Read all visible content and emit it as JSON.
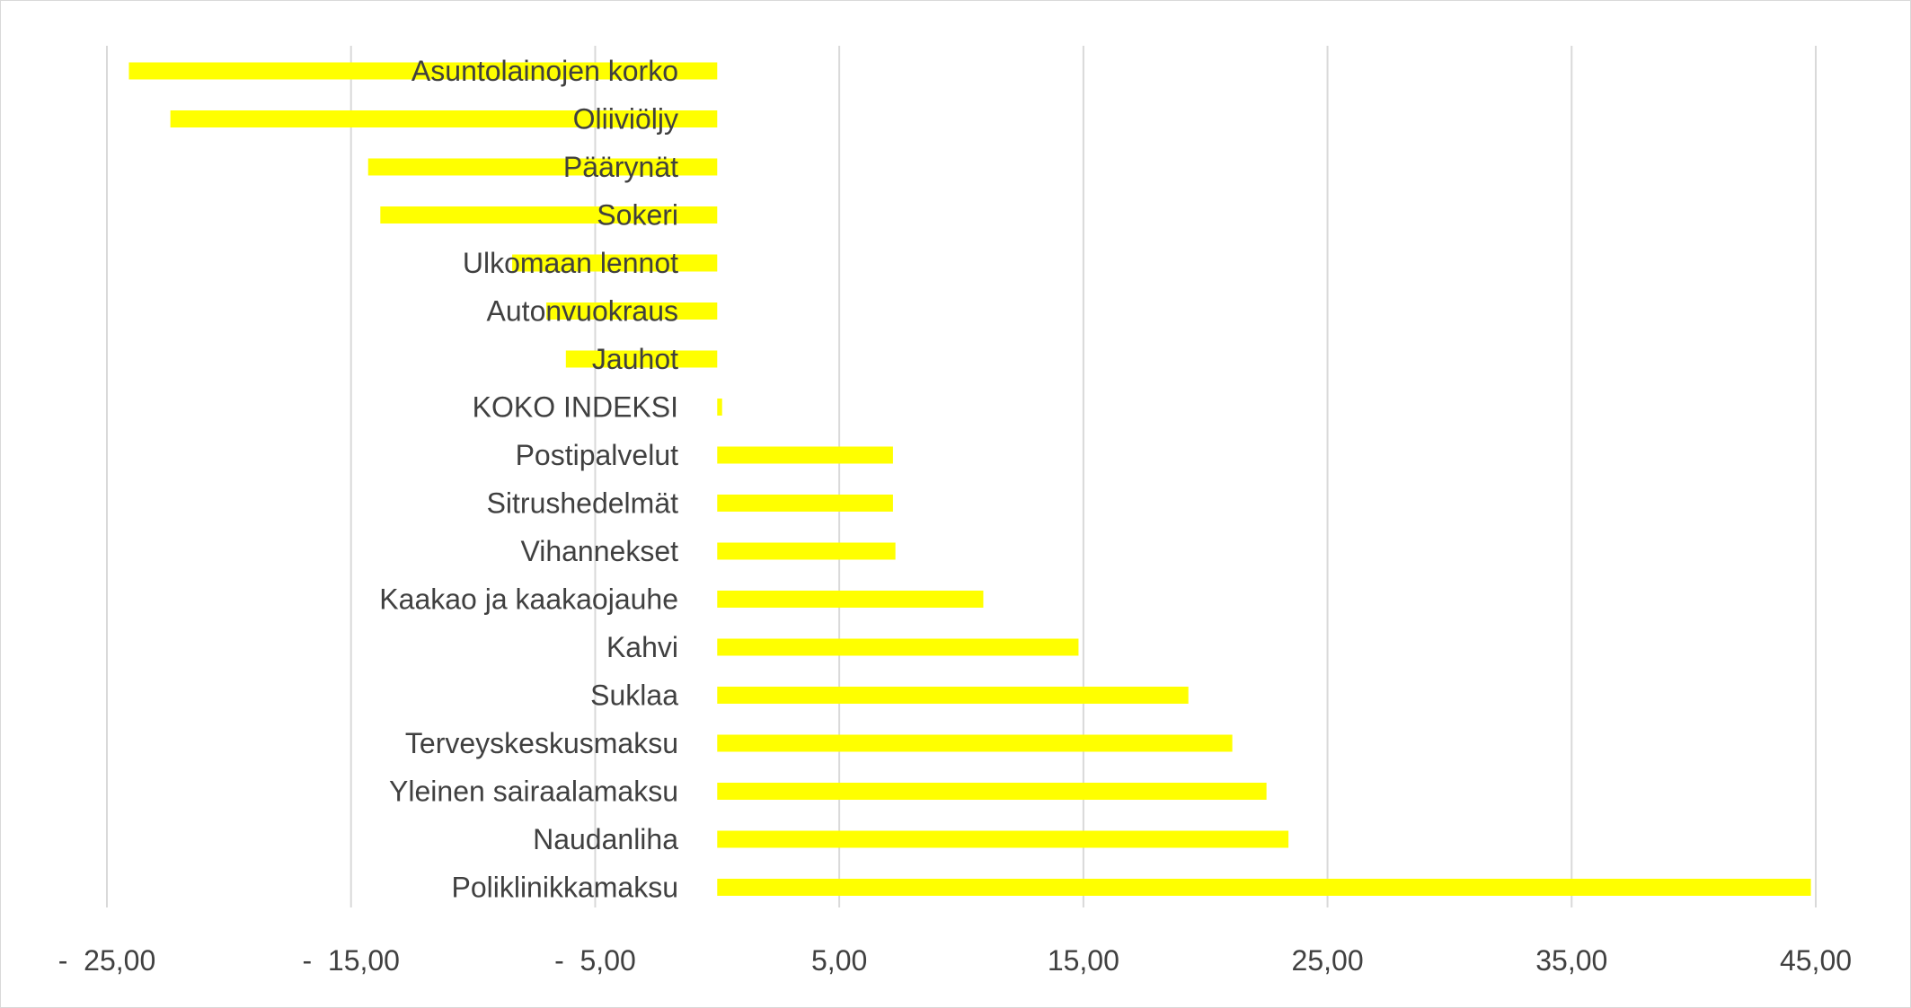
{
  "chart_data": {
    "type": "bar",
    "orientation": "horizontal",
    "categories": [
      "Asuntolainojen korko",
      "Oliiviöljy",
      "Päärynät",
      "Sokeri",
      "Ulkomaan lennot",
      "Autonvuokraus",
      "Jauhot",
      "KOKO INDEKSI",
      "Postipalvelut",
      "Sitrushedelmät",
      "Vihannekset",
      "Kaakao ja kaakaojauhe",
      "Kahvi",
      "Suklaa",
      "Terveyskeskusmaksu",
      "Yleinen sairaalamaksu",
      "Naudanliha",
      "Poliklinikkamaksu"
    ],
    "values": [
      -24.1,
      -22.4,
      -14.3,
      -13.8,
      -8.4,
      -7.0,
      -6.2,
      0.2,
      7.2,
      7.2,
      7.3,
      10.9,
      14.8,
      19.3,
      21.1,
      22.5,
      23.4,
      44.8
    ],
    "xlim": [
      -25,
      45
    ],
    "xticks": [
      -25,
      -15,
      -5,
      5,
      15,
      25,
      35,
      45
    ],
    "xtick_labels": [
      "-  25,00",
      "-  15,00",
      "-  5,00",
      "5,00",
      "15,00",
      "25,00",
      "35,00",
      "45,00"
    ],
    "grid": true,
    "bar_color": "#ffff00",
    "title": "",
    "xlabel": "",
    "ylabel": ""
  }
}
